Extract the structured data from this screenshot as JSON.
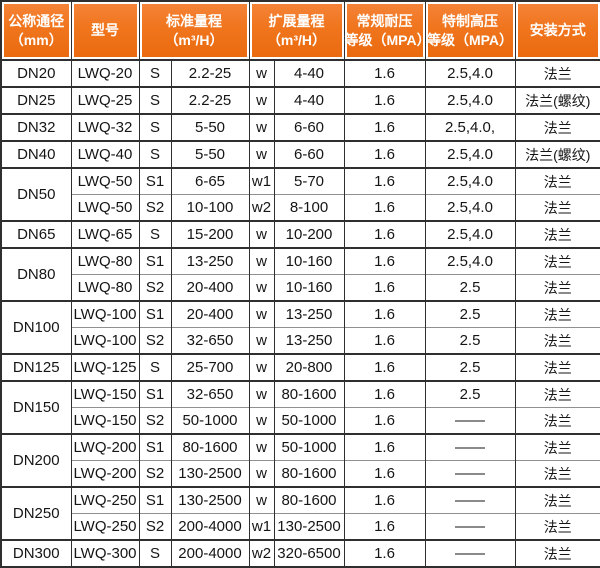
{
  "table": {
    "headers": [
      {
        "id": "nominal-diameter",
        "lines": [
          "公称通径",
          "（mm）"
        ]
      },
      {
        "id": "model",
        "lines": [
          "型号"
        ]
      },
      {
        "id": "standard-range",
        "lines": [
          "标准量程",
          "（m³/H）"
        ]
      },
      {
        "id": "extended-range",
        "lines": [
          "扩展量程",
          "（m³/H）"
        ]
      },
      {
        "id": "normal-pressure",
        "lines": [
          "常规耐压",
          "等级（MPA）"
        ]
      },
      {
        "id": "high-pressure",
        "lines": [
          "特制高压",
          "等级（MPA）"
        ]
      },
      {
        "id": "install-method",
        "lines": [
          "安装方式"
        ]
      }
    ],
    "groups": [
      {
        "dn": "DN20",
        "rows": [
          {
            "model": "LWQ-20",
            "s": "S",
            "std": "2.2-25",
            "w": "w",
            "ext": "4-40",
            "normal": "1.6",
            "high": "2.5,4.0",
            "install": "法兰"
          }
        ]
      },
      {
        "dn": "DN25",
        "rows": [
          {
            "model": "LWQ-25",
            "s": "S",
            "std": "2.2-25",
            "w": "w",
            "ext": "4-40",
            "normal": "1.6",
            "high": "2.5,4.0",
            "install": "法兰(螺纹)"
          }
        ]
      },
      {
        "dn": "DN32",
        "rows": [
          {
            "model": "LWQ-32",
            "s": "S",
            "std": "5-50",
            "w": "w",
            "ext": "6-60",
            "normal": "1.6",
            "high": "2.5,4.0,",
            "install": "法兰"
          }
        ]
      },
      {
        "dn": "DN40",
        "rows": [
          {
            "model": "LWQ-40",
            "s": "S",
            "std": "5-50",
            "w": "w",
            "ext": "6-60",
            "normal": "1.6",
            "high": "2.5,4.0",
            "install": "法兰(螺纹)"
          }
        ]
      },
      {
        "dn": "DN50",
        "rows": [
          {
            "model": "LWQ-50",
            "s": "S1",
            "std": "6-65",
            "w": "w1",
            "ext": "5-70",
            "normal": "1.6",
            "high": "2.5,4.0",
            "install": "法兰"
          },
          {
            "model": "LWQ-50",
            "s": "S2",
            "std": "10-100",
            "w": "w2",
            "ext": "8-100",
            "normal": "1.6",
            "high": "2.5,4.0",
            "install": "法兰"
          }
        ]
      },
      {
        "dn": "DN65",
        "rows": [
          {
            "model": "LWQ-65",
            "s": "S",
            "std": "15-200",
            "w": "w",
            "ext": "10-200",
            "normal": "1.6",
            "high": "2.5,4.0",
            "install": "法兰"
          }
        ]
      },
      {
        "dn": "DN80",
        "rows": [
          {
            "model": "LWQ-80",
            "s": "S1",
            "std": "13-250",
            "w": "w",
            "ext": "10-160",
            "normal": "1.6",
            "high": "2.5,4.0",
            "install": "法兰"
          },
          {
            "model": "LWQ-80",
            "s": "S2",
            "std": "20-400",
            "w": "w",
            "ext": "10-160",
            "normal": "1.6",
            "high": "2.5",
            "install": "法兰"
          }
        ]
      },
      {
        "dn": "DN100",
        "rows": [
          {
            "model": "LWQ-100",
            "s": "S1",
            "std": "20-400",
            "w": "w",
            "ext": "13-250",
            "normal": "1.6",
            "high": "2.5",
            "install": "法兰"
          },
          {
            "model": "LWQ-100",
            "s": "S2",
            "std": "32-650",
            "w": "w",
            "ext": "13-250",
            "normal": "1.6",
            "high": "2.5",
            "install": "法兰"
          }
        ]
      },
      {
        "dn": "DN125",
        "rows": [
          {
            "model": "LWQ-125",
            "s": "S",
            "std": "25-700",
            "w": "w",
            "ext": "20-800",
            "normal": "1.6",
            "high": "2.5",
            "install": "法兰"
          }
        ]
      },
      {
        "dn": "DN150",
        "rows": [
          {
            "model": "LWQ-150",
            "s": "S1",
            "std": "32-650",
            "w": "w",
            "ext": "80-1600",
            "normal": "1.6",
            "high": "2.5",
            "install": "法兰"
          },
          {
            "model": "LWQ-150",
            "s": "S2",
            "std": "50-1000",
            "w": "w",
            "ext": "50-1000",
            "normal": "1.6",
            "high": "——",
            "install": "法兰"
          }
        ]
      },
      {
        "dn": "DN200",
        "rows": [
          {
            "model": "LWQ-200",
            "s": "S1",
            "std": "80-1600",
            "w": "w",
            "ext": "50-1000",
            "normal": "1.6",
            "high": "——",
            "install": "法兰"
          },
          {
            "model": "LWQ-200",
            "s": "S2",
            "std": "130-2500",
            "w": "w",
            "ext": "80-1600",
            "normal": "1.6",
            "high": "——",
            "install": "法兰"
          }
        ]
      },
      {
        "dn": "DN250",
        "rows": [
          {
            "model": "LWQ-250",
            "s": "S1",
            "std": "130-2500",
            "w": "w",
            "ext": "80-1600",
            "normal": "1.6",
            "high": "——",
            "install": "法兰"
          },
          {
            "model": "LWQ-250",
            "s": "S2",
            "std": "200-4000",
            "w": "w1",
            "ext": "130-2500",
            "normal": "1.6",
            "high": "——",
            "install": "法兰"
          }
        ]
      },
      {
        "dn": "DN300",
        "rows": [
          {
            "model": "LWQ-300",
            "s": "S",
            "std": "200-4000",
            "w": "w2",
            "ext": "320-6500",
            "normal": "1.6",
            "high": "——",
            "install": "法兰"
          }
        ]
      }
    ],
    "colors": {
      "header_bg": "#f0751d",
      "header_gradient_top": "#f5843a",
      "header_gradient_bottom": "#ea6a0e",
      "header_text": "#ffffff",
      "grid_major": "#2f2f2f",
      "grid_minor": "#909090",
      "body_text": "#151515",
      "body_bg": "#ffffff"
    }
  }
}
